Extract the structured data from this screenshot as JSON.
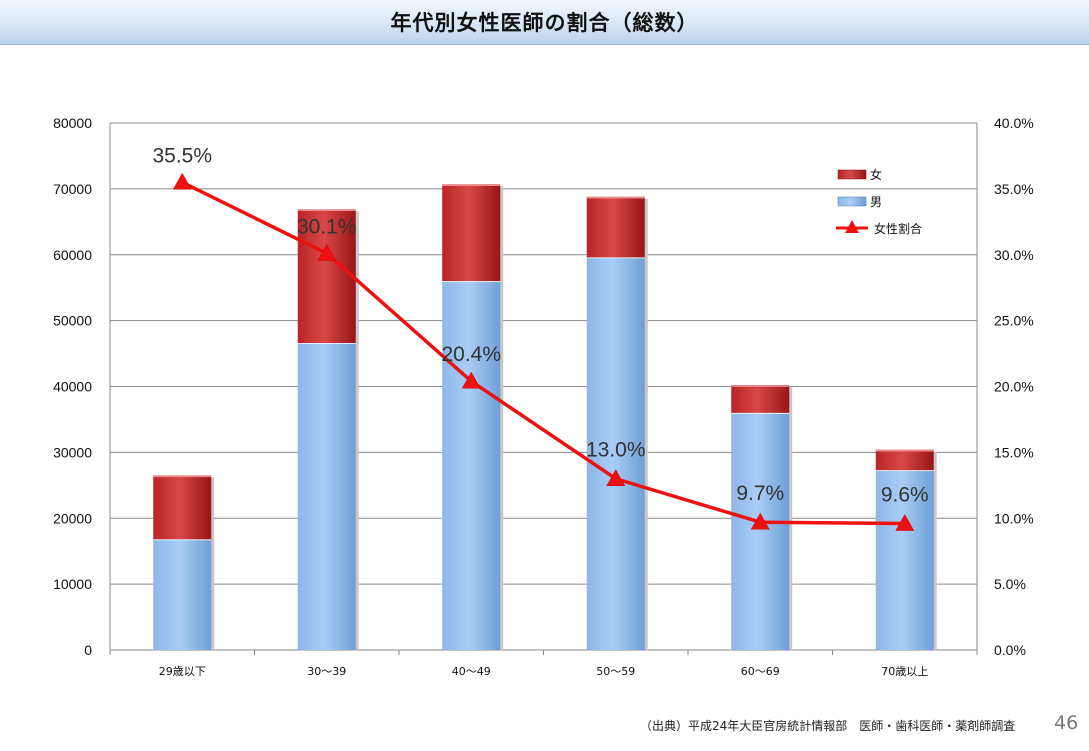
{
  "page": {
    "title": "年代別女性医師の割合（総数）",
    "source": "（出典）平成24年大臣官房統計情報部　医師・歯科医師・薬剤師調査",
    "page_number": "46"
  },
  "chart_data": {
    "type": "bar",
    "stacked": true,
    "categories": [
      "29歳以下",
      "30～39",
      "40～49",
      "50～59",
      "60～69",
      "70歳以上"
    ],
    "series": [
      {
        "name": "男",
        "values": [
          16800,
          46600,
          56000,
          59600,
          36000,
          27300
        ],
        "color": "#99c1ee"
      },
      {
        "name": "女",
        "values": [
          9700,
          20300,
          14700,
          9200,
          4200,
          3100
        ],
        "color": "#cc3333"
      }
    ],
    "line_series": {
      "name": "女性割合",
      "values": [
        35.5,
        30.1,
        20.4,
        13.0,
        9.7,
        9.6
      ],
      "labels": [
        "35.5%",
        "30.1%",
        "20.4%",
        "13.0%",
        "9.7%",
        "9.6%"
      ],
      "color": "#ee1111"
    },
    "y_left": {
      "min": 0,
      "max": 80000,
      "ticks": [
        "0",
        "10000",
        "20000",
        "30000",
        "40000",
        "50000",
        "60000",
        "70000",
        "80000"
      ]
    },
    "y_right": {
      "min": 0,
      "max": 40,
      "ticks": [
        "0.0%",
        "5.0%",
        "10.0%",
        "15.0%",
        "20.0%",
        "25.0%",
        "30.0%",
        "35.0%",
        "40.0%"
      ]
    },
    "legend_position": "top-right",
    "legend": [
      "女",
      "男",
      "女性割合"
    ],
    "grid": true
  }
}
